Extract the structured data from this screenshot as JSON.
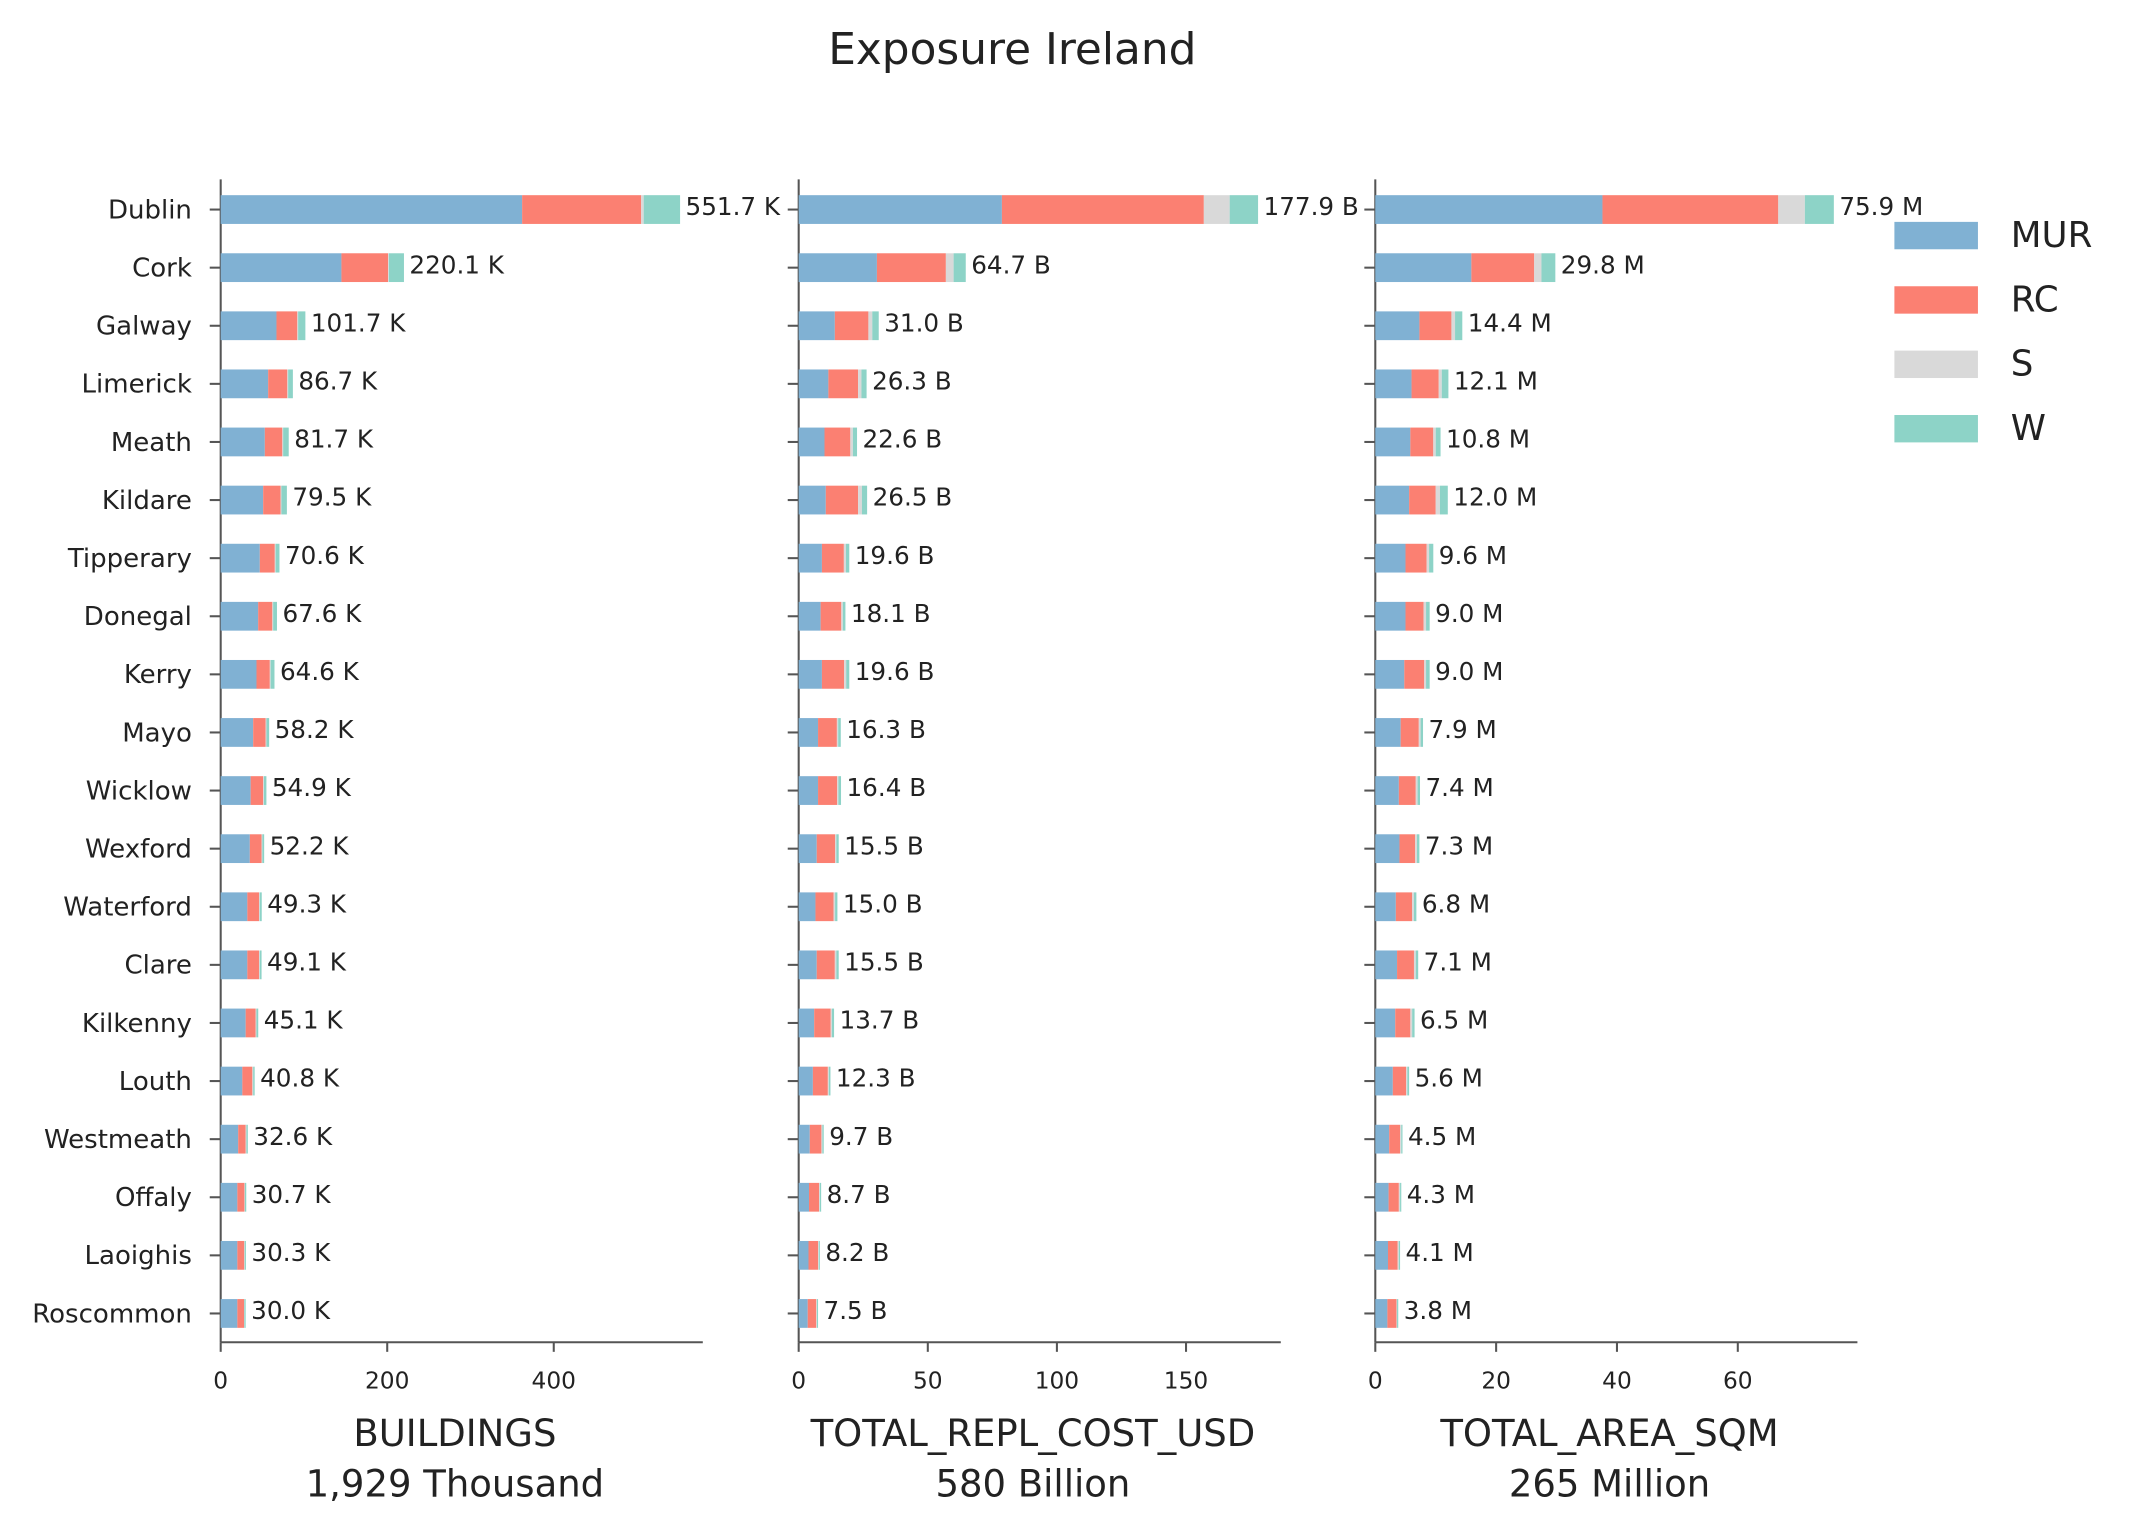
{
  "title": "Exposure Ireland",
  "legend": {
    "position": "upper right"
  },
  "chart_data": [
    {
      "type": "bar",
      "orientation": "horizontal",
      "stacked": true,
      "xlabel": "BUILDINGS",
      "xlabel_sub": "1,929 Thousand",
      "categories": [
        "Dublin",
        "Cork",
        "Galway",
        "Limerick",
        "Meath",
        "Kildare",
        "Tipperary",
        "Donegal",
        "Kerry",
        "Mayo",
        "Wicklow",
        "Wexford",
        "Waterford",
        "Clare",
        "Kilkenny",
        "Louth",
        "Westmeath",
        "Offaly",
        "Laoighis",
        "Roscommon"
      ],
      "xlim": [
        0,
        579
      ],
      "xticks": [
        0,
        200,
        400
      ],
      "series": [
        {
          "name": "MUR",
          "color": "#80b1d3",
          "values": [
            362,
            145,
            67,
            57,
            53,
            51,
            47,
            45,
            43,
            39,
            36,
            35,
            32,
            32,
            30,
            26,
            21,
            20,
            20,
            20
          ]
        },
        {
          "name": "RC",
          "color": "#fb8072",
          "values": [
            143,
            56,
            25,
            23,
            21,
            21,
            18,
            17,
            16,
            15,
            15,
            14,
            14,
            14,
            12,
            12,
            9,
            8.5,
            8.3,
            8
          ]
        },
        {
          "name": "S",
          "color": "#d9d9d9",
          "values": [
            3,
            1,
            1,
            1,
            1,
            1,
            1,
            1,
            1,
            1,
            1,
            1,
            1,
            1,
            1,
            1,
            1,
            0.7,
            0.5,
            0.5
          ]
        },
        {
          "name": "W",
          "color": "#8dd3c7",
          "values": [
            43.7,
            18.1,
            8.7,
            5.7,
            6.7,
            6.5,
            4.6,
            4.6,
            4.6,
            3.2,
            2.9,
            2.2,
            2.3,
            2.1,
            2.1,
            1.8,
            1.6,
            1.5,
            1.5,
            1.5
          ]
        }
      ],
      "totals": {
        "values": [
          551.7,
          220.1,
          101.7,
          86.7,
          81.7,
          79.5,
          70.6,
          67.6,
          64.6,
          58.2,
          54.9,
          52.2,
          49.3,
          49.1,
          45.1,
          40.8,
          32.6,
          30.7,
          30.3,
          30.0
        ],
        "value_labels": [
          "551.7 K",
          "220.1 K",
          "101.7 K",
          "86.7 K",
          "81.7 K",
          "79.5 K",
          "70.6 K",
          "67.6 K",
          "64.6 K",
          "58.2 K",
          "54.9 K",
          "52.2 K",
          "49.3 K",
          "49.1 K",
          "45.1 K",
          "40.8 K",
          "32.6 K",
          "30.7 K",
          "30.3 K",
          "30.0 K"
        ]
      }
    },
    {
      "type": "bar",
      "orientation": "horizontal",
      "stacked": true,
      "xlabel": "TOTAL_REPL_COST_USD",
      "xlabel_sub": "580 Billion",
      "xlim": [
        0,
        186.7
      ],
      "xticks": [
        0,
        50,
        100,
        150
      ],
      "series": [
        {
          "color": "#80b1d3",
          "values": [
            78.7,
            30.3,
            14,
            11.5,
            10,
            10.5,
            9,
            8.5,
            9,
            7.5,
            7.5,
            7,
            6.5,
            7,
            6,
            5.5,
            4.3,
            4,
            3.8,
            3.5
          ]
        },
        {
          "color": "#fb8072",
          "values": [
            78.2,
            26.7,
            13,
            11.5,
            10,
            12.5,
            8.5,
            8,
            8.6,
            7.3,
            7.4,
            7.1,
            7,
            7,
            6.4,
            5.8,
            4.5,
            3.9,
            3.7,
            3.3
          ]
        },
        {
          "color": "#d9d9d9",
          "values": [
            10,
            3,
            1.5,
            1.3,
            1,
            1.5,
            0.8,
            0.6,
            0.8,
            0.5,
            0.5,
            0.5,
            0.6,
            0.6,
            0.5,
            0.4,
            0.4,
            0.3,
            0.3,
            0.3
          ]
        },
        {
          "color": "#8dd3c7",
          "values": [
            11,
            4.7,
            2.5,
            2.0,
            1.6,
            2.0,
            1.3,
            1.0,
            1.2,
            1.0,
            1.0,
            0.9,
            0.9,
            0.9,
            0.8,
            0.6,
            0.5,
            0.5,
            0.4,
            0.4
          ]
        }
      ],
      "totals": {
        "values": [
          177.9,
          64.7,
          31.0,
          26.3,
          22.6,
          26.5,
          19.6,
          18.1,
          19.6,
          16.3,
          16.4,
          15.5,
          15.0,
          15.5,
          13.7,
          12.3,
          9.7,
          8.7,
          8.2,
          7.5
        ],
        "value_labels": [
          "177.9 B",
          "64.7 B",
          "31.0 B",
          "26.3 B",
          "22.6 B",
          "26.5 B",
          "19.6 B",
          "18.1 B",
          "19.6 B",
          "16.3 B",
          "16.4 B",
          "15.5 B",
          "15.0 B",
          "15.5 B",
          "13.7 B",
          "12.3 B",
          "9.7 B",
          "8.7 B",
          "8.2 B",
          "7.5 B"
        ]
      }
    },
    {
      "type": "bar",
      "orientation": "horizontal",
      "stacked": true,
      "xlabel": "TOTAL_AREA_SQM",
      "xlabel_sub": "265 Million",
      "xlim": [
        0,
        79.8
      ],
      "xticks": [
        0,
        20,
        40,
        60
      ],
      "series": [
        {
          "color": "#80b1d3",
          "values": [
            37.6,
            15.9,
            7.3,
            6,
            5.8,
            5.6,
            5,
            5,
            4.8,
            4.2,
            3.9,
            4,
            3.4,
            3.6,
            3.3,
            2.9,
            2.3,
            2.2,
            2.1,
            2.0
          ]
        },
        {
          "color": "#fb8072",
          "values": [
            29.1,
            10.4,
            5.3,
            4.5,
            3.8,
            4.4,
            3.5,
            3,
            3.3,
            3,
            2.8,
            2.6,
            2.7,
            2.8,
            2.5,
            2.2,
            1.8,
            1.7,
            1.6,
            1.5
          ]
        },
        {
          "color": "#d9d9d9",
          "values": [
            4.4,
            1.2,
            0.6,
            0.5,
            0.4,
            0.7,
            0.4,
            0.4,
            0.3,
            0.3,
            0.3,
            0.3,
            0.3,
            0.3,
            0.3,
            0.2,
            0.2,
            0.2,
            0.2,
            0.1
          ]
        },
        {
          "color": "#8dd3c7",
          "values": [
            4.8,
            2.3,
            1.2,
            1.1,
            0.8,
            1.3,
            0.7,
            0.6,
            0.6,
            0.4,
            0.4,
            0.4,
            0.4,
            0.4,
            0.4,
            0.3,
            0.2,
            0.2,
            0.2,
            0.2
          ]
        }
      ],
      "totals": {
        "values": [
          75.9,
          29.8,
          14.4,
          12.1,
          10.8,
          12.0,
          9.6,
          9.0,
          9.0,
          7.9,
          7.4,
          7.3,
          6.8,
          7.1,
          6.5,
          5.6,
          4.5,
          4.3,
          4.1,
          3.8
        ],
        "value_labels": [
          "75.9 M",
          "29.8 M",
          "14.4 M",
          "12.1 M",
          "10.8 M",
          "12.0 M",
          "9.6 M",
          "9.0 M",
          "9.0 M",
          "7.9 M",
          "7.4 M",
          "7.3 M",
          "6.8 M",
          "7.1 M",
          "6.5 M",
          "5.6 M",
          "4.5 M",
          "4.3 M",
          "4.1 M",
          "3.8 M"
        ]
      }
    }
  ]
}
